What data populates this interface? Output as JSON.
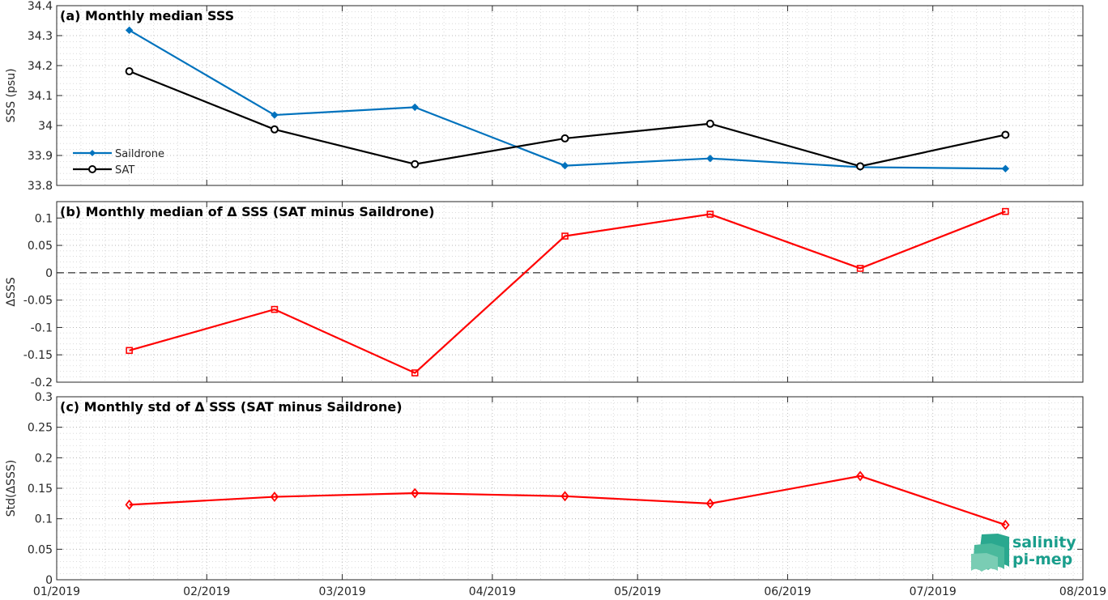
{
  "chart_data": [
    {
      "type": "line",
      "title": "(a) Monthly median SSS",
      "xlabel": "",
      "ylabel": "SSS (psu)",
      "x": [
        "2019-01-16",
        "2019-02-15",
        "2019-03-16",
        "2019-04-16",
        "2019-05-16",
        "2019-06-16",
        "2019-07-16"
      ],
      "ylim": [
        33.8,
        34.4
      ],
      "yticks": [
        33.8,
        33.9,
        34.0,
        34.1,
        34.2,
        34.3,
        34.4
      ],
      "ytick_labels": [
        "33.8",
        "33.9",
        "34",
        "34.1",
        "34.2",
        "34.3",
        "34.4"
      ],
      "grid": true,
      "legend_position": "bottom-left",
      "series": [
        {
          "name": "Saildrone",
          "color": "#0072BD",
          "marker": "diamond-filled",
          "values": [
            34.318,
            34.035,
            34.061,
            33.866,
            33.89,
            33.861,
            33.856
          ]
        },
        {
          "name": "SAT",
          "color": "#000000",
          "marker": "circle",
          "values": [
            34.181,
            33.987,
            33.871,
            33.957,
            34.006,
            33.864,
            33.969
          ]
        }
      ]
    },
    {
      "type": "line",
      "title": "(b) Monthly median of Δ SSS (SAT minus Saildrone)",
      "xlabel": "",
      "ylabel": "ΔSSS",
      "x": [
        "2019-01-16",
        "2019-02-15",
        "2019-03-16",
        "2019-04-16",
        "2019-05-16",
        "2019-06-16",
        "2019-07-16"
      ],
      "ylim": [
        -0.2,
        0.13
      ],
      "yticks": [
        -0.2,
        -0.15,
        -0.1,
        -0.05,
        0,
        0.05,
        0.1
      ],
      "ytick_labels": [
        "-0.2",
        "-0.15",
        "-0.1",
        "-0.05",
        "0",
        "0.05",
        "0.1"
      ],
      "grid": true,
      "reference_line": 0,
      "series": [
        {
          "color": "#FF0000",
          "marker": "square",
          "values": [
            -0.142,
            -0.067,
            -0.183,
            0.067,
            0.107,
            0.008,
            0.112
          ]
        }
      ]
    },
    {
      "type": "line",
      "title": "(c) Monthly std of Δ SSS (SAT minus Saildrone)",
      "xlabel": "",
      "ylabel": "Std(ΔSSS)",
      "x": [
        "2019-01-16",
        "2019-02-15",
        "2019-03-16",
        "2019-04-16",
        "2019-05-16",
        "2019-06-16",
        "2019-07-16"
      ],
      "ylim": [
        0,
        0.3
      ],
      "yticks": [
        0,
        0.05,
        0.1,
        0.15,
        0.2,
        0.25,
        0.3
      ],
      "ytick_labels": [
        "0",
        "0.05",
        "0.1",
        "0.15",
        "0.2",
        "0.25",
        "0.3"
      ],
      "grid": true,
      "series": [
        {
          "color": "#FF0000",
          "marker": "diamond",
          "values": [
            0.123,
            0.136,
            0.142,
            0.137,
            0.125,
            0.17,
            0.09
          ]
        }
      ]
    }
  ],
  "xaxis": {
    "range": [
      "2019-01-01",
      "2019-08-01"
    ],
    "ticks": [
      "2019-01-01",
      "2019-02-01",
      "2019-03-01",
      "2019-04-01",
      "2019-05-01",
      "2019-06-01",
      "2019-07-01",
      "2019-08-01"
    ],
    "tick_labels": [
      "01/2019",
      "02/2019",
      "03/2019",
      "04/2019",
      "05/2019",
      "06/2019",
      "07/2019",
      "08/2019"
    ]
  },
  "logo": {
    "line1": "salinity",
    "line2": "pi-mep",
    "color": "#1a9e8c"
  }
}
